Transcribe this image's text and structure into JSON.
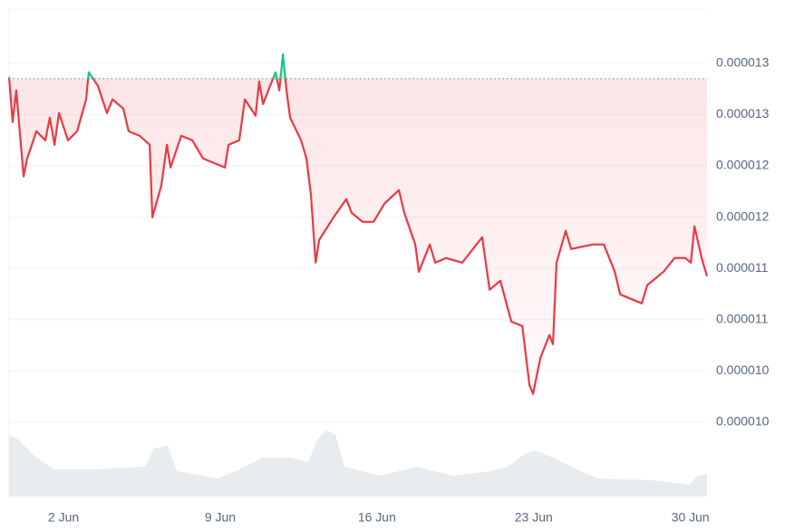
{
  "chart_data": {
    "type": "line",
    "x": [
      -0.43,
      -0.27,
      -0.11,
      0.22,
      0.38,
      0.79,
      1.19,
      1.39,
      1.6,
      1.8,
      2.2,
      2.61,
      3.01,
      3.13,
      3.54,
      3.94,
      4.19,
      4.67,
      4.91,
      5.4,
      5.85,
      5.97,
      6.37,
      6.62,
      6.78,
      7.26,
      7.75,
      8.23,
      8.72,
      9.21,
      9.37,
      9.85,
      10.1,
      10.58,
      10.74,
      10.91,
      11.47,
      11.64,
      11.8,
      11.96,
      12.12,
      12.61,
      12.85,
      13.05,
      13.26,
      13.42,
      14.06,
      14.63,
      14.87,
      15.36,
      15.85,
      16.33,
      16.98,
      17.22,
      17.71,
      17.87,
      18.36,
      18.6,
      19.09,
      19.81,
      20.7,
      21.03,
      21.51,
      22.0,
      22.49,
      22.81,
      22.97,
      23.3,
      23.7,
      23.86,
      24.02,
      24.43,
      24.67,
      25.64,
      26.13,
      26.62,
      26.86,
      27.34,
      27.83,
      28.07,
      28.8,
      29.29,
      29.77,
      30.02,
      30.18,
      30.5,
      30.74
    ],
    "series": [
      {
        "color": "#ea3943",
        "above_color": "#16c784",
        "values": [
          1.2867e-05,
          1.2426e-05,
          1.2735e-05,
          1.1896e-05,
          1.2072e-05,
          1.2337e-05,
          1.2249e-05,
          1.247e-05,
          1.2205e-05,
          1.2514e-05,
          1.2249e-05,
          1.2337e-05,
          1.2647e-05,
          1.2912e-05,
          1.2779e-05,
          1.2514e-05,
          1.2647e-05,
          1.2558e-05,
          1.2337e-05,
          1.2293e-05,
          1.2205e-05,
          1.1498e-05,
          1.1807e-05,
          1.2205e-05,
          1.1984e-05,
          1.2293e-05,
          1.2249e-05,
          1.2072e-05,
          1.2028e-05,
          1.1984e-05,
          1.2205e-05,
          1.2249e-05,
          1.2647e-05,
          1.2488e-05,
          1.2823e-05,
          1.2602e-05,
          1.2912e-05,
          1.2735e-05,
          1.3088e-05,
          1.2735e-05,
          1.247e-05,
          1.2249e-05,
          1.2072e-05,
          1.1719e-05,
          1.1056e-05,
          1.1277e-05,
          1.1498e-05,
          1.1675e-05,
          1.1542e-05,
          1.1454e-05,
          1.1454e-05,
          1.1631e-05,
          1.1763e-05,
          1.1542e-05,
          1.1233e-05,
          1.0967e-05,
          1.1233e-05,
          1.1056e-05,
          1.1101e-05,
          1.1056e-05,
          1.1304e-05,
          1.0792e-05,
          1.088e-05,
          1.0482e-05,
          1.0438e-05,
          9.864e-06,
          9.776e-06,
          1.0129e-05,
          1.035e-05,
          1.0261e-05,
          1.1056e-05,
          1.1366e-05,
          1.1189e-05,
          1.1233e-05,
          1.1233e-05,
          1.0968e-05,
          1.0747e-05,
          1.0703e-05,
          1.0659e-05,
          1.0836e-05,
          1.0968e-05,
          1.1101e-05,
          1.1101e-05,
          1.1056e-05,
          1.141e-05,
          1.1101e-05,
          1.0924e-05
        ]
      }
    ],
    "reference": 1.285e-05,
    "xlim": [
      -0.43,
      30.74
    ],
    "xticks": [
      {
        "value": 2,
        "label": "2 Jun"
      },
      {
        "value": 9,
        "label": "9 Jun"
      },
      {
        "value": 16,
        "label": "16 Jun"
      },
      {
        "value": 23,
        "label": "23 Jun"
      },
      {
        "value": 30,
        "label": "30 Jun"
      }
    ],
    "ylim": [
      9.5e-06,
      1.35e-05
    ],
    "yticks": [
      1.3e-05,
      {
        "value": 1.25e-05,
        "label": "0.000013"
      },
      1.2e-05,
      {
        "value": 1.15e-05,
        "label": "0.000012"
      },
      1.1e-05,
      {
        "value": 1.05e-05,
        "label": "0.000011"
      },
      {
        "value": 1e-05,
        "label": "0.000010"
      },
      {
        "value": 9.5e-06,
        "label": "0.000010"
      }
    ],
    "grid": true,
    "volume": {
      "color": "#e9ecef",
      "x": [
        -0.43,
        -0.02,
        0.79,
        1.6,
        3.21,
        5.64,
        6.05,
        6.66,
        7.06,
        8.88,
        10.1,
        10.91,
        12.12,
        12.93,
        13.34,
        13.74,
        14.15,
        14.55,
        16.17,
        17.79,
        19.41,
        21.03,
        21.84,
        22.65,
        23.05,
        23.86,
        25.08,
        25.89,
        28.32,
        29.94,
        30.34,
        30.74
      ],
      "values": [
        68,
        63,
        43,
        30,
        30,
        33,
        53,
        56,
        28,
        20,
        33,
        43,
        43,
        38,
        63,
        73,
        68,
        33,
        23,
        33,
        23,
        28,
        33,
        48,
        51,
        43,
        28,
        20,
        18,
        13,
        23,
        25
      ],
      "ylim": [
        0,
        80
      ]
    }
  }
}
